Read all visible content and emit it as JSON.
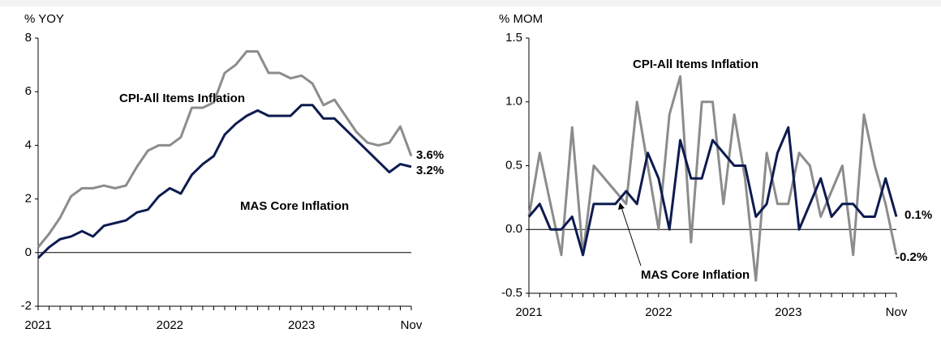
{
  "chart_data": [
    {
      "type": "line",
      "y_label": "% YOY",
      "categories": [
        "2021",
        null,
        null,
        null,
        null,
        null,
        null,
        null,
        null,
        null,
        null,
        null,
        "2022",
        null,
        null,
        null,
        null,
        null,
        null,
        null,
        null,
        null,
        null,
        null,
        "2023",
        null,
        null,
        null,
        null,
        null,
        null,
        null,
        null,
        null,
        "Nov"
      ],
      "series": [
        {
          "name": "CPI-All Items Inflation",
          "color": "#8c8c8c",
          "values": [
            0.2,
            0.7,
            1.3,
            2.1,
            2.4,
            2.4,
            2.5,
            2.4,
            2.5,
            3.2,
            3.8,
            4.0,
            4.0,
            4.3,
            5.4,
            5.4,
            5.6,
            6.7,
            7.0,
            7.5,
            7.5,
            6.7,
            6.7,
            6.5,
            6.6,
            6.3,
            5.5,
            5.7,
            5.1,
            4.5,
            4.1,
            4.0,
            4.1,
            4.7,
            3.6
          ],
          "value_labels": [
            null,
            null,
            null,
            null,
            null,
            null,
            null,
            null,
            null,
            null,
            null,
            null,
            null,
            null,
            null,
            null,
            null,
            null,
            null,
            null,
            null,
            null,
            null,
            null,
            null,
            null,
            null,
            null,
            null,
            null,
            null,
            null,
            null,
            null,
            "3.6%"
          ]
        },
        {
          "name": "MAS Core Inflation",
          "color": "#0d1b4f",
          "values": [
            -0.2,
            0.2,
            0.5,
            0.6,
            0.8,
            0.6,
            1.0,
            1.1,
            1.2,
            1.5,
            1.6,
            2.1,
            2.4,
            2.2,
            2.9,
            3.3,
            3.6,
            4.4,
            4.8,
            5.1,
            5.3,
            5.1,
            5.1,
            5.1,
            5.5,
            5.5,
            5.0,
            5.0,
            4.6,
            4.2,
            3.8,
            3.4,
            3.0,
            3.3,
            3.2
          ],
          "value_labels": [
            null,
            null,
            null,
            null,
            null,
            null,
            null,
            null,
            null,
            null,
            null,
            null,
            null,
            null,
            null,
            null,
            null,
            null,
            null,
            null,
            null,
            null,
            null,
            null,
            null,
            null,
            null,
            null,
            null,
            null,
            null,
            null,
            null,
            null,
            "3.2%"
          ]
        }
      ],
      "ylim": [
        -2,
        8
      ],
      "yticks": [
        -2,
        0,
        2,
        4,
        6,
        8
      ]
    },
    {
      "type": "line",
      "y_label": "% MOM",
      "categories": [
        "2021",
        null,
        null,
        null,
        null,
        null,
        null,
        null,
        null,
        null,
        null,
        null,
        "2022",
        null,
        null,
        null,
        null,
        null,
        null,
        null,
        null,
        null,
        null,
        null,
        "2023",
        null,
        null,
        null,
        null,
        null,
        null,
        null,
        null,
        null,
        "Nov"
      ],
      "series": [
        {
          "name": "CPI-All Items Inflation",
          "color": "#8c8c8c",
          "values": [
            0.1,
            0.6,
            0.2,
            -0.2,
            0.8,
            -0.2,
            0.5,
            0.4,
            0.3,
            0.2,
            1.0,
            0.5,
            0.0,
            0.9,
            1.2,
            -0.1,
            1.0,
            1.0,
            0.2,
            0.9,
            0.4,
            -0.4,
            0.6,
            0.2,
            0.2,
            0.6,
            0.5,
            0.1,
            0.3,
            0.5,
            -0.2,
            0.9,
            0.5,
            0.2,
            -0.2
          ],
          "value_labels": [
            null,
            null,
            null,
            null,
            null,
            null,
            null,
            null,
            null,
            null,
            null,
            null,
            null,
            null,
            null,
            null,
            null,
            null,
            null,
            null,
            null,
            null,
            null,
            null,
            null,
            null,
            null,
            null,
            null,
            null,
            null,
            null,
            null,
            null,
            "-0.2%"
          ]
        },
        {
          "name": "MAS Core Inflation",
          "color": "#0d1b4f",
          "values": [
            0.1,
            0.2,
            0.0,
            0.0,
            0.1,
            -0.2,
            0.2,
            0.2,
            0.2,
            0.3,
            0.2,
            0.6,
            0.4,
            0.0,
            0.7,
            0.4,
            0.4,
            0.7,
            0.6,
            0.5,
            0.5,
            0.1,
            0.2,
            0.6,
            0.8,
            0.0,
            0.2,
            0.4,
            0.1,
            0.2,
            0.2,
            0.1,
            0.1,
            0.4,
            0.1
          ],
          "value_labels": [
            null,
            null,
            null,
            null,
            null,
            null,
            null,
            null,
            null,
            null,
            null,
            null,
            null,
            null,
            null,
            null,
            null,
            null,
            null,
            null,
            null,
            null,
            null,
            null,
            null,
            null,
            null,
            null,
            null,
            null,
            null,
            null,
            null,
            null,
            "0.1%"
          ]
        }
      ],
      "ylim": [
        -0.5,
        1.5
      ],
      "yticks": [
        {
          "value": -0.5,
          "label": "-0.5"
        },
        {
          "value": 0,
          "label": "0.0"
        },
        {
          "value": 0.5,
          "label": "0.5"
        },
        {
          "value": 1,
          "label": "1.0"
        },
        {
          "value": 1.5,
          "label": "1.5"
        }
      ]
    }
  ]
}
